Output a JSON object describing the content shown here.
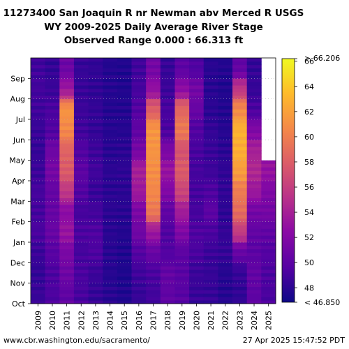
{
  "header": {
    "line1": "11273400 San Joaquin R nr Newman abv Merced R USGS",
    "line2": "WY 2009-2025 Daily Average River Stage",
    "line3": "Observed Range 0.000 : 66.313 ft"
  },
  "footer": {
    "left": "www.cbr.washington.edu/sacramento/",
    "right": "27 Apr 2025 15:47:52 PDT"
  },
  "chart_data": {
    "type": "heatmap",
    "title": "11273400 San Joaquin R nr Newman abv Merced R USGS WY 2009-2025 Daily Average River Stage",
    "x_categories": [
      "2009",
      "2010",
      "2011",
      "2012",
      "2013",
      "2014",
      "2015",
      "2016",
      "2017",
      "2018",
      "2019",
      "2020",
      "2021",
      "2022",
      "2023",
      "2024",
      "2025"
    ],
    "y_categories": [
      "Oct",
      "Nov",
      "Dec",
      "Jan",
      "Feb",
      "Mar",
      "Apr",
      "May",
      "Jun",
      "Jul",
      "Aug",
      "Sep"
    ],
    "colorbar": {
      "min_label": "< 46.850",
      "max_label": "> 66.206",
      "vmin": 46.85,
      "vmax": 66.206,
      "ticks": [
        48,
        50,
        52,
        54,
        56,
        58,
        60,
        62,
        64,
        66
      ]
    },
    "values_monthly_approx": [
      [
        48.5,
        48.3,
        48.6,
        49.2,
        49.0,
        49.0,
        48.6,
        48.4,
        48.5,
        48.8,
        48.9,
        48.8
      ],
      [
        49.3,
        49.3,
        49.8,
        50.6,
        50.5,
        50.4,
        51.3,
        50.9,
        49.5,
        49.2,
        48.6,
        48.3
      ],
      [
        50.2,
        50.9,
        51.5,
        53.2,
        52.4,
        55.6,
        57.8,
        58.3,
        60.6,
        61.2,
        53.3,
        50.8
      ],
      [
        49.1,
        49.2,
        49.0,
        49.3,
        49.0,
        49.6,
        50.0,
        49.5,
        48.8,
        48.6,
        48.5,
        48.4
      ],
      [
        48.4,
        48.6,
        49.3,
        49.4,
        48.9,
        48.5,
        48.8,
        48.7,
        48.3,
        48.3,
        48.2,
        48.2
      ],
      [
        47.9,
        47.8,
        47.9,
        47.9,
        48.0,
        48.0,
        48.0,
        47.9,
        47.8,
        47.7,
        47.8,
        47.7
      ],
      [
        47.6,
        47.5,
        47.6,
        47.7,
        47.9,
        48.0,
        48.1,
        48.0,
        47.8,
        47.7,
        47.6,
        47.6
      ],
      [
        48.4,
        48.8,
        49.6,
        51.0,
        51.5,
        53.5,
        54.0,
        51.3,
        50.2,
        49.6,
        49.0,
        48.8
      ],
      [
        48.9,
        49.2,
        50.5,
        53.3,
        59.6,
        60.5,
        60.9,
        61.2,
        61.3,
        58.0,
        52.8,
        51.2
      ],
      [
        50.2,
        50.4,
        49.5,
        49.5,
        50.2,
        51.9,
        53.2,
        51.6,
        49.2,
        49.1,
        48.6,
        48.4
      ],
      [
        49.8,
        49.9,
        50.0,
        51.8,
        53.7,
        56.4,
        57.8,
        57.2,
        59.7,
        58.5,
        52.5,
        50.0
      ],
      [
        48.5,
        48.6,
        49.2,
        49.4,
        49.0,
        49.0,
        49.0,
        49.1,
        49.5,
        50.6,
        51.2,
        49.4
      ],
      [
        48.4,
        48.4,
        48.6,
        49.2,
        50.0,
        49.3,
        48.7,
        48.5,
        48.3,
        48.0,
        47.9,
        47.9
      ],
      [
        47.8,
        47.8,
        48.4,
        48.3,
        48.1,
        48.2,
        48.2,
        48.0,
        47.8,
        47.7,
        47.6,
        47.7
      ],
      [
        48.2,
        48.4,
        50.5,
        55.8,
        58.9,
        59.8,
        61.7,
        62.7,
        62.8,
        60.6,
        55.4,
        50.3
      ],
      [
        50.1,
        50.3,
        50.0,
        50.3,
        51.2,
        53.4,
        54.5,
        54.0,
        51.8,
        49.2,
        48.4,
        48.3
      ],
      [
        49.2,
        49.3,
        49.6,
        50.2,
        51.3,
        51.8,
        53.0,
        null,
        null,
        null,
        null,
        null
      ]
    ]
  }
}
